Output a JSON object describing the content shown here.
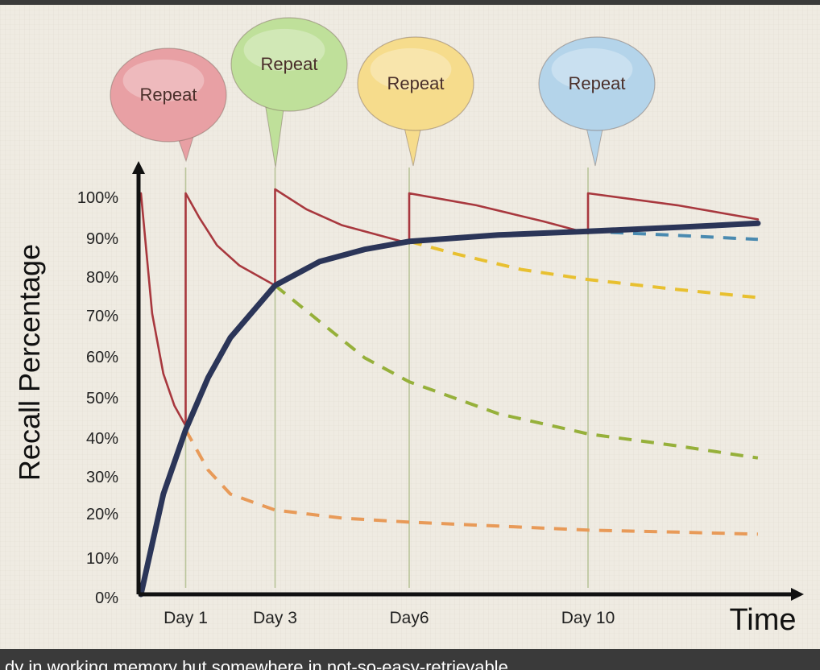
{
  "caption": "dy in working memory but somewhere in not-so-easy-retrievable",
  "colors": {
    "background": "#efebe2",
    "axis": "#111111",
    "memory_strength": "#2b3558",
    "recall_sawtooth": "#a8383e",
    "guide_lines": "#b9c49a",
    "bubble_text": "#4a2f2a"
  },
  "chart_data": {
    "type": "line",
    "title": "",
    "xlabel": "Time",
    "ylabel": "Recall Percentage",
    "ylim": [
      0,
      100
    ],
    "yticks": [
      {
        "value": 0,
        "label": "0%"
      },
      {
        "value": 10,
        "label": "10%"
      },
      {
        "value": 20,
        "label": "20%"
      },
      {
        "value": 30,
        "label": "30%"
      },
      {
        "value": 40,
        "label": "40%"
      },
      {
        "value": 50,
        "label": "50%"
      },
      {
        "value": 60,
        "label": "60%"
      },
      {
        "value": 70,
        "label": "70%"
      },
      {
        "value": 80,
        "label": "80%"
      },
      {
        "value": 90,
        "label": "90%"
      },
      {
        "value": 100,
        "label": "100%"
      }
    ],
    "xlim": [
      0,
      14.2
    ],
    "xticks": [
      {
        "value": 1,
        "label": "Day 1"
      },
      {
        "value": 3,
        "label": "Day 3"
      },
      {
        "value": 6,
        "label": "Day6"
      },
      {
        "value": 10,
        "label": "Day 10"
      }
    ],
    "repeats": [
      {
        "day": 1,
        "label": "Repeat",
        "color": "#e8a0a4"
      },
      {
        "day": 3,
        "label": "Repeat",
        "color": "#bfe09a"
      },
      {
        "day": 6,
        "label": "Repeat",
        "color": "#f6dc8c"
      },
      {
        "day": 10,
        "label": "Repeat",
        "color": "#b4d4ea"
      }
    ],
    "series": [
      {
        "style": "solid-thick",
        "color": "#2b3558",
        "points": [
          [
            0,
            0
          ],
          [
            0.5,
            25
          ],
          [
            1,
            41
          ],
          [
            1.5,
            54
          ],
          [
            2,
            64
          ],
          [
            3,
            77
          ],
          [
            4,
            83
          ],
          [
            5,
            86
          ],
          [
            6,
            88
          ],
          [
            8,
            89.6
          ],
          [
            10,
            90.5
          ],
          [
            12,
            91.5
          ],
          [
            13.8,
            92.5
          ]
        ]
      },
      {
        "style": "solid",
        "color": "#a8383e",
        "points": [
          [
            0,
            100
          ],
          [
            0.25,
            70
          ],
          [
            0.5,
            55
          ],
          [
            0.75,
            47
          ],
          [
            1,
            42
          ],
          [
            1,
            100
          ],
          [
            1.3,
            94
          ],
          [
            1.7,
            87
          ],
          [
            2.2,
            82
          ],
          [
            3,
            77
          ],
          [
            3,
            101
          ],
          [
            3.7,
            96
          ],
          [
            4.5,
            92
          ],
          [
            6,
            87.5
          ],
          [
            6,
            100
          ],
          [
            7.5,
            97
          ],
          [
            9,
            93
          ],
          [
            10,
            90
          ],
          [
            10,
            100
          ],
          [
            12,
            97
          ],
          [
            13.8,
            93.5
          ]
        ]
      },
      {
        "style": "dashed",
        "color": "#e89a58",
        "points": [
          [
            1,
            41
          ],
          [
            1.5,
            31
          ],
          [
            2,
            25
          ],
          [
            3,
            21
          ],
          [
            4.5,
            19
          ],
          [
            6,
            18
          ],
          [
            8,
            17
          ],
          [
            10,
            16
          ],
          [
            12,
            15.5
          ],
          [
            13.8,
            15
          ]
        ]
      },
      {
        "style": "dashed",
        "color": "#96b03a",
        "points": [
          [
            3,
            77
          ],
          [
            4,
            68
          ],
          [
            5,
            59
          ],
          [
            6,
            53
          ],
          [
            8,
            45
          ],
          [
            10,
            40
          ],
          [
            12,
            37
          ],
          [
            13.8,
            34
          ]
        ]
      },
      {
        "style": "dashed",
        "color": "#e8c030",
        "points": [
          [
            6,
            88
          ],
          [
            7,
            85
          ],
          [
            8.5,
            81
          ],
          [
            10,
            78.5
          ],
          [
            12,
            76
          ],
          [
            13.8,
            74
          ]
        ]
      },
      {
        "style": "dashed",
        "color": "#4a8ab0",
        "points": [
          [
            10,
            90.5
          ],
          [
            12,
            89.5
          ],
          [
            13.8,
            88.5
          ]
        ]
      }
    ]
  }
}
